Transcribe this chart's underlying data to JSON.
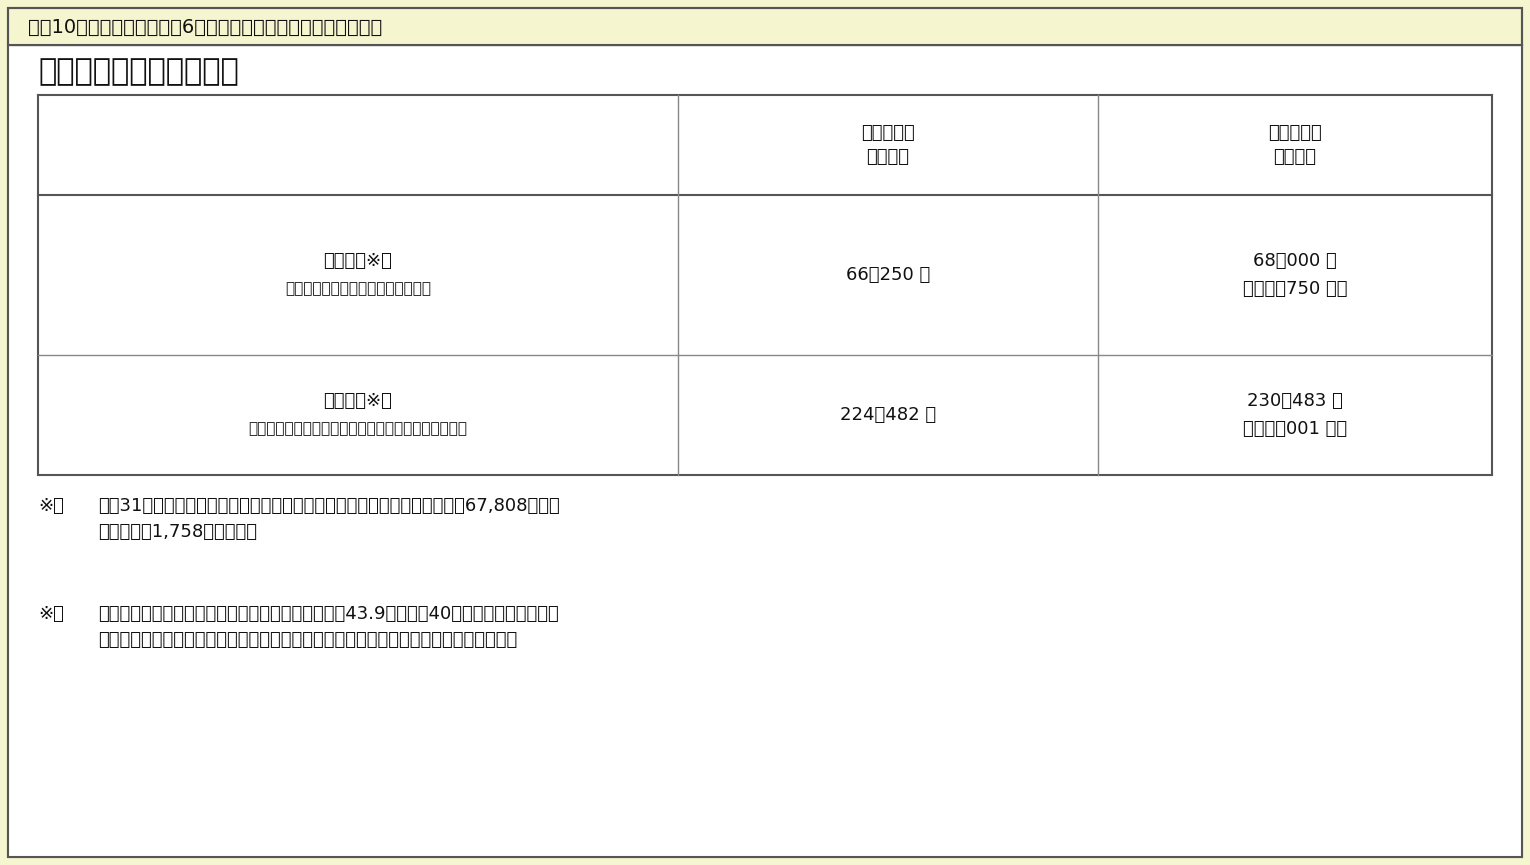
{
  "outer_bg": "#f5f5d0",
  "inner_bg": "#ffffff",
  "header_title": "図表10　厚生労働省「令和6年度の年金額改定について」の抜粋",
  "section_title": "令和６年度の年金額の例",
  "col_header1_l1": "令和５年度",
  "col_header1_l2": "（月額）",
  "col_header2_l1": "令和６年度",
  "col_header2_l2": "（月額）",
  "row1_label_l1": "国民年金※１",
  "row1_label_l2": "（老齢基礎年金（満額）：１人分）",
  "row1_val1": "66，250 円",
  "row1_val2_l1": "68，000 円",
  "row1_val2_l2": "（＋１，750 円）",
  "row2_label_l1": "厚生年金※２",
  "row2_label_l2": "（夫婦２人分の老齢基礎年金を含む標準的な年金額）",
  "row2_val1": "224，482 円",
  "row2_val2_l1": "230，483 円",
  "row2_val2_l2": "（＋６，001 円）",
  "note1_mark": "※１",
  "note1_indent": "昭和31年４月１日以前生まれの方の老齢基礎年金（満額１人分）は、月額67,808円（対",
  "note1_indent2": "前年度比＋1,758円）です。",
  "note2_mark": "※２",
  "note2_indent": "平均的な収入（平均標準報酬（賞与含む月額換算）43.9万円）で40年間就業した場合に受",
  "note2_indent2": "け取り始める年金（老齢厚生年金と２人分の老齢基礎年金（満額））の給付水準です。",
  "border_dark": "#555555",
  "border_mid": "#888888",
  "border_light": "#aaaaaa",
  "fs_header": 14,
  "fs_section": 22,
  "fs_col_hdr": 13,
  "fs_cell": 13,
  "fs_small": 11,
  "fs_note": 13
}
